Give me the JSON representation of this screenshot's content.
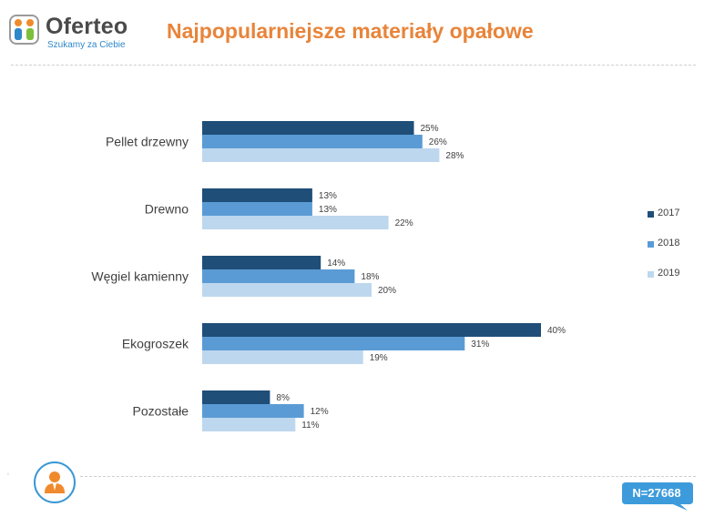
{
  "brand": {
    "name": "Oferteo",
    "tagline": "Szukamy za Ciebie"
  },
  "header": {
    "title": "Najpopularniejsze materiały opałowe"
  },
  "footer": {
    "sample_size": "N=27668",
    "person_icon": "user-icon"
  },
  "colors": {
    "accent": "#e8843a",
    "brand_blue": "#3a97d4",
    "badge_blue": "#3d9bdc"
  },
  "chart_data": {
    "type": "bar",
    "orientation": "horizontal",
    "title": "Najpopularniejsze materiały opałowe",
    "categories": [
      "Pellet drzewny",
      "Drewno",
      "Węgiel kamienny",
      "Ekogroszek",
      "Pozostałe"
    ],
    "value_suffix": "%",
    "series": [
      {
        "name": "2017",
        "color": "#1f4e79",
        "values": [
          25,
          13,
          14,
          40,
          8
        ]
      },
      {
        "name": "2018",
        "color": "#5b9bd5",
        "values": [
          26,
          13,
          18,
          31,
          12
        ]
      },
      {
        "name": "2019",
        "color": "#bdd7ee",
        "values": [
          28,
          22,
          20,
          19,
          11
        ]
      }
    ],
    "xlim": [
      0,
      40
    ],
    "grid": false,
    "legend_position": "right"
  }
}
